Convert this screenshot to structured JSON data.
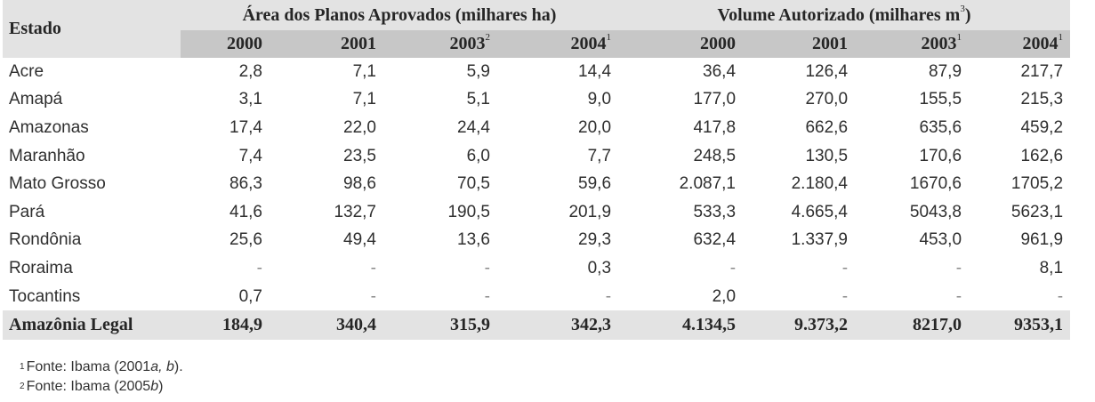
{
  "table": {
    "state_header": "Estado",
    "groups": [
      {
        "title": "Área dos Planos Aprovados (milhares ha)",
        "unit_sup": ""
      },
      {
        "title": "Volume Autorizado (milhares m",
        "unit_sup": "3",
        "title_end": ")"
      }
    ],
    "years": [
      {
        "label": "2000",
        "sup": ""
      },
      {
        "label": "2001",
        "sup": ""
      },
      {
        "label": "2003",
        "sup": "2"
      },
      {
        "label": "2004",
        "sup": "1"
      },
      {
        "label": "2000",
        "sup": ""
      },
      {
        "label": "2001",
        "sup": ""
      },
      {
        "label": "2003",
        "sup": "1"
      },
      {
        "label": "2004",
        "sup": "1"
      }
    ],
    "rows": [
      {
        "state": "Acre",
        "values": [
          "2,8",
          "7,1",
          "5,9",
          "14,4",
          "36,4",
          "126,4",
          "87,9",
          "217,7"
        ]
      },
      {
        "state": "Amapá",
        "values": [
          "3,1",
          "7,1",
          "5,1",
          "9,0",
          "177,0",
          "270,0",
          "155,5",
          "215,3"
        ]
      },
      {
        "state": "Amazonas",
        "values": [
          "17,4",
          "22,0",
          "24,4",
          "20,0",
          "417,8",
          "662,6",
          "635,6",
          "459,2"
        ]
      },
      {
        "state": "Maranhão",
        "values": [
          "7,4",
          "23,5",
          "6,0",
          "7,7",
          "248,5",
          "130,5",
          "170,6",
          "162,6"
        ]
      },
      {
        "state": "Mato Grosso",
        "values": [
          "86,3",
          "98,6",
          "70,5",
          "59,6",
          "2.087,1",
          "2.180,4",
          "1670,6",
          "1705,2"
        ]
      },
      {
        "state": "Pará",
        "values": [
          "41,6",
          "132,7",
          "190,5",
          "201,9",
          "533,3",
          "4.665,4",
          "5043,8",
          "5623,1"
        ]
      },
      {
        "state": "Rondônia",
        "values": [
          "25,6",
          "49,4",
          "13,6",
          "29,3",
          "632,4",
          "1.337,9",
          "453,0",
          "961,9"
        ]
      },
      {
        "state": "Roraima",
        "values": [
          "-",
          "-",
          "-",
          "0,3",
          "-",
          "-",
          "-",
          "8,1"
        ]
      },
      {
        "state": "Tocantins",
        "values": [
          "0,7",
          "-",
          "-",
          "-",
          "2,0",
          "-",
          "-",
          "-"
        ]
      }
    ],
    "total": {
      "state": "Amazônia Legal",
      "values": [
        "184,9",
        "340,4",
        "315,9",
        "342,3",
        "4.134,5",
        "9.373,2",
        "8217,0",
        "9353,1"
      ]
    }
  },
  "notes": [
    {
      "num": "1",
      "text": "Fonte: Ibama (2001",
      "ital": "a, b",
      "end": ")."
    },
    {
      "num": "2",
      "text": "Fonte: Ibama (2005",
      "ital": "b",
      "end": ")"
    }
  ]
}
